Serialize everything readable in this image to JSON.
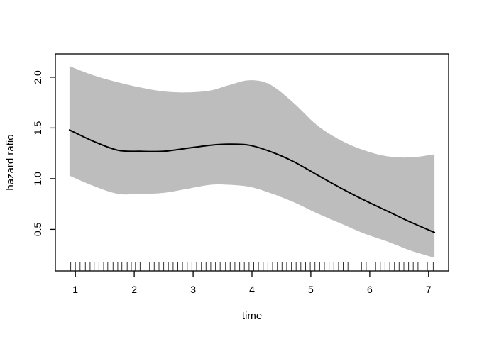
{
  "chart_data": {
    "type": "line",
    "title": "",
    "xlabel": "time",
    "ylabel": "hazard ratio",
    "xlim": [
      0.66,
      7.34
    ],
    "ylim": [
      0.09,
      2.23
    ],
    "x_ticks": [
      {
        "value": 1,
        "label": "1"
      },
      {
        "value": 2,
        "label": "2"
      },
      {
        "value": 3,
        "label": "3"
      },
      {
        "value": 4,
        "label": "4"
      },
      {
        "value": 5,
        "label": "5"
      },
      {
        "value": 6,
        "label": "6"
      },
      {
        "value": 7,
        "label": "7"
      }
    ],
    "y_ticks": [
      {
        "value": 0.5,
        "label": "0.5"
      },
      {
        "value": 1.0,
        "label": "1.0"
      },
      {
        "value": 1.5,
        "label": "1.5"
      },
      {
        "value": 2.0,
        "label": "2.0"
      }
    ],
    "grid": false,
    "legend": "none",
    "x": [
      0.9,
      1.3,
      1.72,
      2.1,
      2.5,
      2.9,
      3.3,
      3.6,
      3.95,
      4.3,
      4.7,
      5.1,
      5.5,
      5.9,
      6.3,
      6.7,
      7.1
    ],
    "series": [
      {
        "name": "hazard ratio estimate",
        "role": "fit",
        "color": "#000000",
        "width": 2,
        "values": [
          1.48,
          1.37,
          1.28,
          1.27,
          1.27,
          1.3,
          1.33,
          1.34,
          1.33,
          1.27,
          1.17,
          1.04,
          0.91,
          0.79,
          0.68,
          0.57,
          0.47
        ]
      },
      {
        "name": "upper confidence limit",
        "role": "band-upper",
        "values": [
          2.11,
          2.02,
          1.95,
          1.9,
          1.86,
          1.85,
          1.87,
          1.92,
          1.97,
          1.93,
          1.75,
          1.53,
          1.38,
          1.28,
          1.22,
          1.21,
          1.24
        ]
      },
      {
        "name": "lower confidence limit",
        "role": "band-lower",
        "values": [
          1.03,
          0.93,
          0.85,
          0.85,
          0.86,
          0.9,
          0.94,
          0.94,
          0.92,
          0.86,
          0.77,
          0.66,
          0.56,
          0.46,
          0.38,
          0.29,
          0.22
        ]
      }
    ],
    "band_color": "#bdbdbd",
    "axis_color": "#000000",
    "background_color": "#ffffff",
    "rug_times": [
      0.92,
      1.0,
      1.08,
      1.17,
      1.25,
      1.32,
      1.4,
      1.48,
      1.55,
      1.64,
      1.72,
      1.79,
      1.88,
      1.95,
      2.02,
      2.1,
      2.26,
      2.34,
      2.42,
      2.5,
      2.58,
      2.66,
      2.74,
      2.82,
      2.9,
      2.98,
      3.06,
      3.14,
      3.22,
      3.3,
      3.38,
      3.46,
      3.55,
      3.63,
      3.71,
      3.79,
      3.87,
      3.95,
      4.03,
      4.11,
      4.19,
      4.27,
      4.35,
      4.43,
      4.51,
      4.59,
      4.67,
      4.75,
      4.83,
      4.91,
      4.99,
      5.07,
      5.15,
      5.23,
      5.31,
      5.39,
      5.47,
      5.55,
      5.63,
      5.86,
      5.94,
      6.02,
      6.1,
      6.18,
      6.26,
      6.34,
      6.42,
      6.5,
      6.58,
      6.66,
      6.74,
      6.82,
      6.98,
      7.08
    ]
  }
}
